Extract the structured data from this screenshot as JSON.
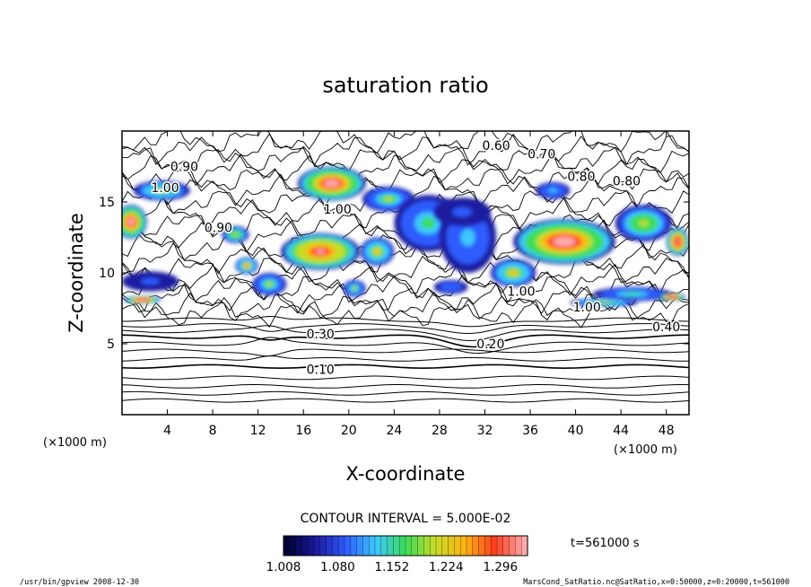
{
  "chart_data": {
    "type": "heatmap",
    "title": "saturation ratio",
    "xlabel": "X-coordinate",
    "ylabel": "Z-coordinate",
    "x_unit": "(×1000 m)",
    "y_unit": "(×1000 m)",
    "xlim": [
      0,
      50
    ],
    "ylim": [
      0,
      20
    ],
    "x_ticks": [
      4,
      8,
      12,
      16,
      20,
      24,
      28,
      32,
      36,
      40,
      44,
      48
    ],
    "y_ticks": [
      5,
      10,
      15
    ],
    "x_tick_labels": [
      "4",
      "8",
      "12",
      "16",
      "20",
      "24",
      "28",
      "32",
      "36",
      "40",
      "44",
      "48"
    ],
    "y_tick_labels": [
      "5",
      "10",
      "15"
    ],
    "contour_interval_text": "CONTOUR INTERVAL = 5.000E-02",
    "time_label": "t=561000 s",
    "colorbar": {
      "min": 1.008,
      "max": 1.332,
      "tick_values": [
        1.008,
        1.08,
        1.152,
        1.224,
        1.296
      ],
      "tick_labels": [
        "1.008",
        "1.080",
        "1.152",
        "1.224",
        "1.296"
      ],
      "colors": [
        "#000033",
        "#1a1aa0",
        "#2f5cff",
        "#3cc8ff",
        "#3cdc5a",
        "#c8dc28",
        "#ffb414",
        "#ff3c1e",
        "#ffaaaa"
      ]
    },
    "contour_labels": [
      {
        "text": "0.10",
        "x": 17.5,
        "z": 3.2
      },
      {
        "text": "0.20",
        "x": 32.5,
        "z": 5.0
      },
      {
        "text": "0.30",
        "x": 17.5,
        "z": 5.7
      },
      {
        "text": "0.40",
        "x": 48,
        "z": 6.2
      },
      {
        "text": "0.60",
        "x": 33,
        "z": 19.0
      },
      {
        "text": "0.70",
        "x": 37,
        "z": 18.4
      },
      {
        "text": "0.80",
        "x": 40.5,
        "z": 16.8
      },
      {
        "text": "0.80",
        "x": 44.5,
        "z": 16.5
      },
      {
        "text": "0.90",
        "x": 5.5,
        "z": 17.5
      },
      {
        "text": "0.90",
        "x": 8.5,
        "z": 13.2
      },
      {
        "text": "1.00",
        "x": 3.8,
        "z": 16.0
      },
      {
        "text": "1.00",
        "x": 19.0,
        "z": 14.5
      },
      {
        "text": "1.00",
        "x": 35.2,
        "z": 8.7
      },
      {
        "text": "1.00",
        "x": 41.0,
        "z": 7.6
      }
    ],
    "moisture_regions": [
      {
        "x": 0.8,
        "z": 13.6,
        "rx": 1.4,
        "rz": 1.2,
        "level": 0.95
      },
      {
        "x": 3.5,
        "z": 15.8,
        "rx": 2.5,
        "rz": 0.7,
        "level": 0.55
      },
      {
        "x": 2.5,
        "z": 9.4,
        "rx": 2.5,
        "rz": 0.7,
        "level": 0.12
      },
      {
        "x": 18.5,
        "z": 16.3,
        "rx": 3.0,
        "rz": 1.2,
        "level": 0.95
      },
      {
        "x": 23.5,
        "z": 15.2,
        "rx": 2.3,
        "rz": 0.9,
        "level": 0.5
      },
      {
        "x": 17.5,
        "z": 11.5,
        "rx": 3.5,
        "rz": 1.3,
        "level": 0.85
      },
      {
        "x": 10.0,
        "z": 12.7,
        "rx": 1.2,
        "rz": 0.6,
        "level": 0.6
      },
      {
        "x": 11.0,
        "z": 10.5,
        "rx": 1.0,
        "rz": 0.6,
        "level": 0.8
      },
      {
        "x": 13.0,
        "z": 9.2,
        "rx": 1.5,
        "rz": 0.8,
        "level": 0.5
      },
      {
        "x": 27.0,
        "z": 13.5,
        "rx": 3.0,
        "rz": 2.0,
        "level": 0.4
      },
      {
        "x": 30.5,
        "z": 12.5,
        "rx": 2.5,
        "rz": 2.5,
        "level": 0.25
      },
      {
        "x": 30.0,
        "z": 14.3,
        "rx": 2.5,
        "rz": 1.0,
        "level": 0.08
      },
      {
        "x": 22.5,
        "z": 11.5,
        "rx": 1.5,
        "rz": 1.0,
        "level": 0.65
      },
      {
        "x": 34.5,
        "z": 10.0,
        "rx": 2.0,
        "rz": 1.0,
        "level": 0.7
      },
      {
        "x": 39.0,
        "z": 12.2,
        "rx": 4.5,
        "rz": 1.6,
        "level": 0.95
      },
      {
        "x": 46.0,
        "z": 13.5,
        "rx": 2.5,
        "rz": 1.3,
        "level": 0.6
      },
      {
        "x": 45.0,
        "z": 8.5,
        "rx": 3.5,
        "rz": 0.5,
        "level": 0.4
      },
      {
        "x": 49.0,
        "z": 12.2,
        "rx": 1.0,
        "rz": 1.0,
        "level": 0.9
      },
      {
        "x": 42.5,
        "z": 7.9,
        "rx": 3.0,
        "rz": 0.3,
        "level": 0.55
      },
      {
        "x": 48.5,
        "z": 8.3,
        "rx": 1.2,
        "rz": 0.3,
        "level": 0.9
      },
      {
        "x": 1.8,
        "z": 8.1,
        "rx": 1.6,
        "rz": 0.3,
        "level": 0.9
      },
      {
        "x": 29.0,
        "z": 9.0,
        "rx": 1.5,
        "rz": 0.5,
        "level": 0.15
      },
      {
        "x": 20.5,
        "z": 8.9,
        "rx": 1.0,
        "rz": 0.6,
        "level": 0.5
      },
      {
        "x": 38.0,
        "z": 15.8,
        "rx": 1.5,
        "rz": 0.6,
        "level": 0.3
      }
    ]
  },
  "footer": {
    "left_text": "/usr/bin/gpview   2008-12-30",
    "right_text": "MarsCond_SatRatio.nc@SatRatio,x=0:50000,z=0:20000,t=561000"
  }
}
